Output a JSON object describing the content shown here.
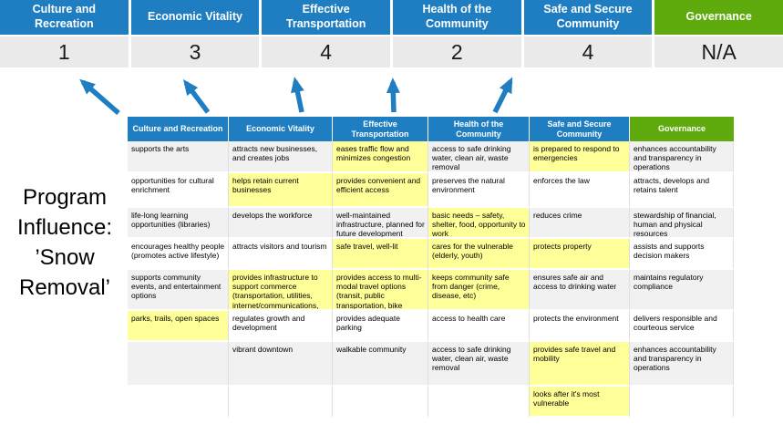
{
  "colors": {
    "blue": "#1F7EC2",
    "green": "#5FAA0D",
    "highlight_yellow": "#FFFF99",
    "band_gray": "#F1F1F1",
    "score_row_gray": "#EAEAEA"
  },
  "summary": {
    "columns": [
      {
        "label": "Culture and Recreation",
        "score": "1",
        "color": "blue"
      },
      {
        "label": "Economic Vitality",
        "score": "3",
        "color": "blue"
      },
      {
        "label": "Effective Transportation",
        "score": "4",
        "color": "blue"
      },
      {
        "label": "Health of the Community",
        "score": "2",
        "color": "blue"
      },
      {
        "label": "Safe and Secure Community",
        "score": "4",
        "color": "blue"
      },
      {
        "label": "Governance",
        "score": "N/A",
        "color": "green"
      }
    ]
  },
  "program_influence": {
    "lines": [
      "Program",
      "Influence:",
      "’Snow",
      "Removal’"
    ]
  },
  "matrix": {
    "headers": [
      {
        "label": "Culture and Recreation",
        "color": "blue"
      },
      {
        "label": "Economic Vitality",
        "color": "blue"
      },
      {
        "label": "Effective Transportation",
        "color": "blue"
      },
      {
        "label": "Health of the Community",
        "color": "blue"
      },
      {
        "label": "Safe and Secure Community",
        "color": "blue"
      },
      {
        "label": "Governance",
        "color": "green"
      }
    ],
    "rows": [
      [
        {
          "text": "supports the arts",
          "highlight": false
        },
        {
          "text": "attracts new businesses, and creates jobs",
          "highlight": false
        },
        {
          "text": "eases traffic flow and minimizes congestion",
          "highlight": true
        },
        {
          "text": "access to safe drinking water, clean air, waste removal",
          "highlight": false
        },
        {
          "text": "is prepared to respond to emergencies",
          "highlight": true
        },
        {
          "text": "enhances accountability and transparency in operations",
          "highlight": false
        }
      ],
      [
        {
          "text": "opportunities for cultural enrichment",
          "highlight": false
        },
        {
          "text": "helps retain current businesses",
          "highlight": true
        },
        {
          "text": "provides convenient and efficient access",
          "highlight": true
        },
        {
          "text": "preserves the natural environment",
          "highlight": false
        },
        {
          "text": "enforces the law",
          "highlight": false
        },
        {
          "text": "attracts, develops and retains talent",
          "highlight": false
        }
      ],
      [
        {
          "text": "life-long learning opportunities (libraries)",
          "highlight": false
        },
        {
          "text": "develops the workforce",
          "highlight": false
        },
        {
          "text": "well-maintained infrastructure, planned for future development",
          "highlight": false
        },
        {
          "text": "basic needs – safety, shelter, food, opportunity to work",
          "highlight": true
        },
        {
          "text": "reduces crime",
          "highlight": false
        },
        {
          "text": "stewardship of financial, human and physical resources",
          "highlight": false
        }
      ],
      [
        {
          "text": "encourages healthy people (promotes active lifestyle)",
          "highlight": false
        },
        {
          "text": "attracts visitors and tourism",
          "highlight": false
        },
        {
          "text": "safe travel, well-lit",
          "highlight": true
        },
        {
          "text": "cares for the vulnerable (elderly, youth)",
          "highlight": true
        },
        {
          "text": "protects property",
          "highlight": true
        },
        {
          "text": "assists and supports decision makers",
          "highlight": false
        }
      ],
      [
        {
          "text": "supports community events, and entertainment options",
          "highlight": false
        },
        {
          "text": "provides infrastructure to support commerce (transportation, utilities, internet/communications, smart cities, etc)",
          "highlight": true
        },
        {
          "text": "provides access to multi-modal travel options (transit, public transportation, bike lanes, trails)",
          "highlight": true
        },
        {
          "text": "keeps community safe from danger (crime, disease, etc)",
          "highlight": true
        },
        {
          "text": "ensures safe air and access to drinking water",
          "highlight": false
        },
        {
          "text": "maintains regulatory compliance",
          "highlight": false
        }
      ],
      [
        {
          "text": "parks, trails, open spaces",
          "highlight": true
        },
        {
          "text": "regulates growth and development",
          "highlight": false
        },
        {
          "text": "provides adequate parking",
          "highlight": false
        },
        {
          "text": "access to health care",
          "highlight": false
        },
        {
          "text": "protects the environment",
          "highlight": false
        },
        {
          "text": "delivers responsible and courteous service",
          "highlight": false
        }
      ],
      [
        {
          "text": "",
          "highlight": false
        },
        {
          "text": "vibrant downtown",
          "highlight": false
        },
        {
          "text": "walkable community",
          "highlight": false
        },
        {
          "text": "access to safe drinking water, clean air, waste removal",
          "highlight": false
        },
        {
          "text": "provides safe travel and mobility",
          "highlight": true
        },
        {
          "text": "enhances accountability and transparency in operations",
          "highlight": false
        }
      ],
      [
        {
          "text": "",
          "highlight": false
        },
        {
          "text": "",
          "highlight": false
        },
        {
          "text": "",
          "highlight": false
        },
        {
          "text": "",
          "highlight": false
        },
        {
          "text": "looks after it's most vulnerable",
          "highlight": true
        },
        {
          "text": "",
          "highlight": false
        }
      ]
    ]
  }
}
